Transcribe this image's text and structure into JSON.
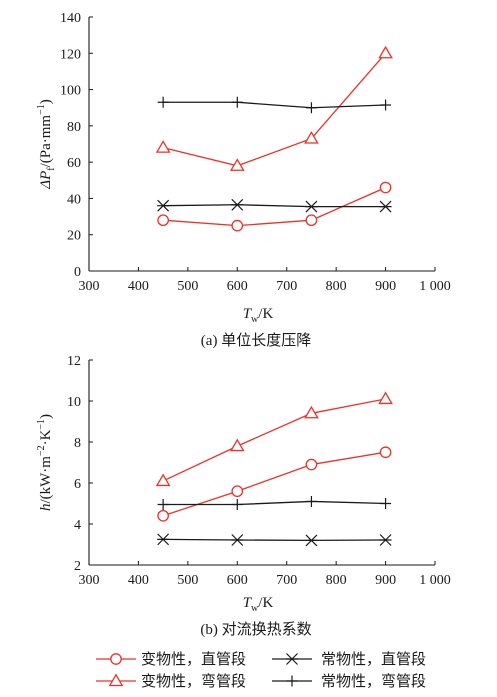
{
  "chart_data": [
    {
      "type": "line",
      "caption": "(a) 单位长度压降",
      "xlabel": {
        "symbol": "T",
        "subscript": "w",
        "unit": "/K"
      },
      "ylabel": {
        "symbol": "ΔP",
        "subscript": "f",
        "unit": "/(Pa·mm",
        "unit_exp": "−1",
        "unit_end": ")"
      },
      "xlim": [
        300,
        1000
      ],
      "ylim": [
        0,
        140
      ],
      "xticks": [
        300,
        400,
        500,
        600,
        700,
        800,
        900,
        1000
      ],
      "xtick_labels": [
        "300",
        "400",
        "500",
        "600",
        "700",
        "800",
        "900",
        "1 000"
      ],
      "yticks": [
        0,
        20,
        40,
        60,
        80,
        100,
        120,
        140
      ],
      "grid": false,
      "x": [
        450,
        600,
        750,
        900
      ],
      "series": [
        {
          "name": "变物性，直管段",
          "values": [
            28,
            25,
            28,
            46
          ],
          "color": "#e8322b",
          "marker": "circle"
        },
        {
          "name": "变物性，弯管段",
          "values": [
            68,
            58,
            73,
            120
          ],
          "color": "#e8322b",
          "marker": "triangle"
        },
        {
          "name": "常物性，直管段",
          "values": [
            36,
            36.5,
            35.5,
            35.5
          ],
          "color": "#1a1a1a",
          "marker": "asterisk"
        },
        {
          "name": "常物性，弯管段",
          "values": [
            93,
            93,
            90,
            91.5
          ],
          "color": "#1a1a1a",
          "marker": "plus"
        }
      ]
    },
    {
      "type": "line",
      "caption": "(b) 对流换热系数",
      "xlabel": {
        "symbol": "T",
        "subscript": "w",
        "unit": "/K"
      },
      "ylabel": {
        "symbol": "h",
        "subscript": "",
        "unit": "/(kW·m",
        "unit_exp": "−2",
        "unit_mid": "·K",
        "unit_exp2": "−1",
        "unit_end": ")"
      },
      "xlim": [
        300,
        1000
      ],
      "ylim": [
        2,
        12
      ],
      "xticks": [
        300,
        400,
        500,
        600,
        700,
        800,
        900,
        1000
      ],
      "xtick_labels": [
        "300",
        "400",
        "500",
        "600",
        "700",
        "800",
        "900",
        "1 000"
      ],
      "yticks": [
        2,
        4,
        6,
        8,
        10,
        12
      ],
      "grid": false,
      "x": [
        450,
        600,
        750,
        900
      ],
      "series": [
        {
          "name": "变物性，直管段",
          "values": [
            4.4,
            5.6,
            6.9,
            7.5
          ],
          "color": "#e8322b",
          "marker": "circle"
        },
        {
          "name": "变物性，弯管段",
          "values": [
            6.1,
            7.8,
            9.4,
            10.1
          ],
          "color": "#e8322b",
          "marker": "triangle"
        },
        {
          "name": "常物性，直管段",
          "values": [
            3.25,
            3.22,
            3.2,
            3.22
          ],
          "color": "#1a1a1a",
          "marker": "asterisk"
        },
        {
          "name": "常物性，弯管段",
          "values": [
            4.95,
            4.95,
            5.1,
            5.0
          ],
          "color": "#1a1a1a",
          "marker": "plus"
        }
      ]
    }
  ],
  "legend": {
    "placement": "bottom",
    "entries": [
      {
        "label": "变物性，直管段",
        "color": "#e8322b",
        "marker": "circle"
      },
      {
        "label": "常物性，直管段",
        "color": "#1a1a1a",
        "marker": "asterisk"
      },
      {
        "label": "变物性，弯管段",
        "color": "#e8322b",
        "marker": "triangle"
      },
      {
        "label": "常物性，弯管段",
        "color": "#1a1a1a",
        "marker": "plus"
      }
    ]
  }
}
